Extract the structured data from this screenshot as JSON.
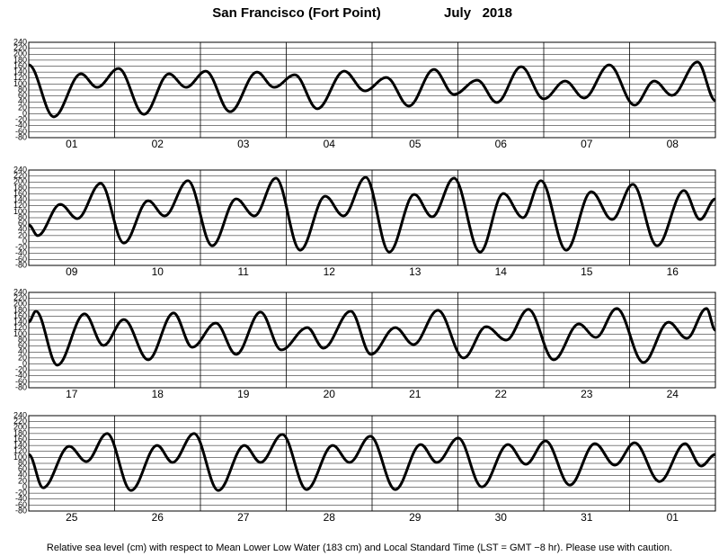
{
  "title": "San Francisco (Fort Point)",
  "date": "July   2018",
  "note": "Relative sea level (cm) with respect to Mean Lower Low Water (183 cm) and Local Standard Time (LST = GMT −8 hr). Please use with caution.",
  "chart_data": [
    {
      "type": "line",
      "color": "#000000",
      "grid": true,
      "categories": [
        "01",
        "02",
        "03",
        "04",
        "05",
        "06",
        "07",
        "08"
      ],
      "xlim": [
        0,
        192
      ],
      "ylim": [
        -80,
        240
      ],
      "yticks": [
        -80,
        -60,
        -40,
        -20,
        0,
        20,
        40,
        60,
        80,
        100,
        120,
        140,
        160,
        180,
        200,
        220,
        240
      ],
      "x": [
        0,
        7,
        14.6,
        19.1,
        25.1,
        32.2,
        39.2,
        44,
        49.5,
        56.3,
        63.8,
        68.6,
        74.4,
        80.7,
        88.2,
        94,
        100,
        106.3,
        113.3,
        118.9,
        125.4,
        130.9,
        137.7,
        144,
        150,
        155.3,
        162.3,
        169.4,
        174.9,
        179.9,
        187,
        192
      ],
      "values": [
        164,
        -10,
        134,
        89,
        152,
        -2,
        134,
        89,
        143,
        7,
        140,
        89,
        131,
        17,
        143,
        77,
        122,
        26,
        149,
        65,
        113,
        38,
        158,
        50,
        110,
        53,
        164,
        29,
        110,
        62,
        174,
        44
      ]
    },
    {
      "type": "line",
      "color": "#000000",
      "grid": true,
      "categories": [
        "09",
        "10",
        "11",
        "12",
        "13",
        "14",
        "15",
        "16"
      ],
      "xlim": [
        0,
        192
      ],
      "ylim": [
        -80,
        240
      ],
      "yticks": [
        -80,
        -60,
        -40,
        -20,
        0,
        20,
        40,
        60,
        80,
        100,
        120,
        140,
        160,
        180,
        200,
        220,
        240
      ],
      "x": [
        0,
        2.5,
        8.8,
        13.6,
        20.1,
        26.6,
        33.4,
        38,
        44.5,
        51.3,
        58,
        63.1,
        69.1,
        75.9,
        82.9,
        88,
        94.2,
        100.8,
        107.8,
        112.8,
        118.9,
        126.2,
        132.7,
        138.2,
        143.2,
        150.3,
        157.3,
        163.1,
        168.9,
        175.7,
        183.2,
        187.7,
        192
      ],
      "values": [
        56,
        20,
        125,
        77,
        195,
        -5,
        137,
        86,
        204,
        -14,
        143,
        86,
        213,
        -29,
        152,
        86,
        216,
        -35,
        158,
        83,
        213,
        -35,
        161,
        80,
        204,
        -29,
        167,
        74,
        192,
        -14,
        171,
        74,
        143
      ]
    },
    {
      "type": "line",
      "color": "#000000",
      "grid": true,
      "categories": [
        "17",
        "18",
        "19",
        "20",
        "21",
        "22",
        "23",
        "24"
      ],
      "xlim": [
        0,
        192
      ],
      "ylim": [
        -80,
        240
      ],
      "yticks": [
        -80,
        -60,
        -40,
        -20,
        0,
        20,
        40,
        60,
        80,
        100,
        120,
        140,
        160,
        180,
        200,
        220,
        240
      ],
      "x": [
        0,
        2,
        8,
        15.6,
        20.9,
        26.6,
        33.4,
        40.5,
        45.7,
        52.3,
        58,
        64.8,
        70.6,
        77.9,
        82.4,
        90,
        95.7,
        102.5,
        107.6,
        114.4,
        121.6,
        127.9,
        133.5,
        139.7,
        146.8,
        153.8,
        158.6,
        164.4,
        171.9,
        178.9,
        184,
        189.5,
        192
      ],
      "values": [
        141,
        177,
        -4,
        168,
        62,
        149,
        14,
        171,
        56,
        137,
        32,
        174,
        47,
        122,
        53,
        177,
        32,
        122,
        65,
        180,
        20,
        125,
        80,
        183,
        14,
        134,
        89,
        186,
        5,
        140,
        86,
        186,
        113
      ]
    },
    {
      "type": "line",
      "color": "#000000",
      "grid": true,
      "categories": [
        "25",
        "26",
        "27",
        "28",
        "29",
        "30",
        "31",
        "01"
      ],
      "xlim": [
        0,
        192
      ],
      "ylim": [
        -80,
        240
      ],
      "yticks": [
        -80,
        -60,
        -40,
        -20,
        0,
        20,
        40,
        60,
        80,
        100,
        120,
        140,
        160,
        180,
        200,
        220,
        240
      ],
      "x": [
        0,
        4,
        11.3,
        16.1,
        21.9,
        28.6,
        35.9,
        40.2,
        46.2,
        53,
        60.3,
        64.8,
        70.9,
        77.7,
        85,
        89.7,
        95.5,
        102.5,
        109.6,
        114.1,
        120.1,
        126.7,
        134,
        139,
        144.5,
        151.3,
        158.3,
        163.9,
        169.4,
        176.4,
        183.5,
        188,
        192
      ],
      "values": [
        110,
        -2,
        137,
        86,
        180,
        -11,
        140,
        83,
        180,
        -11,
        140,
        83,
        177,
        -8,
        140,
        83,
        171,
        -8,
        143,
        83,
        165,
        1,
        143,
        77,
        155,
        7,
        146,
        74,
        149,
        19,
        146,
        71,
        110
      ]
    }
  ]
}
